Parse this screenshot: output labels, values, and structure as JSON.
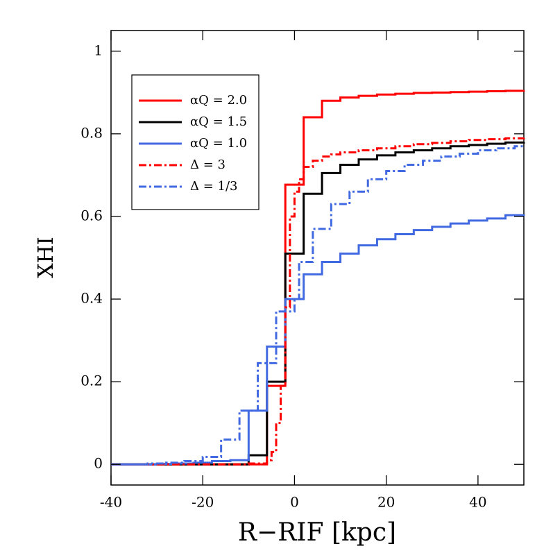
{
  "chart_data": {
    "type": "step",
    "xlabel": "R−RIF [kpc]",
    "ylabel": "XHI",
    "xlim": [
      -40,
      50
    ],
    "ylim": [
      -0.05,
      1.05
    ],
    "xticks": [
      -40,
      -20,
      0,
      20,
      40
    ],
    "yticks": [
      0,
      0.2,
      0.4,
      0.6,
      0.8,
      1
    ],
    "legend": "upper left",
    "series": [
      {
        "name": "αQ = 2.0",
        "color": "#ff0000",
        "dash": "solid",
        "x": [
          -40,
          -38,
          -34,
          -30,
          -26,
          -22,
          -18,
          -14,
          -10,
          -6,
          -2,
          2,
          6,
          10,
          14,
          18,
          22,
          26,
          30,
          34,
          38,
          42,
          46,
          50
        ],
        "values": [
          0,
          0,
          0,
          0,
          0,
          0,
          0,
          0,
          0,
          0.19,
          0.677,
          0.84,
          0.88,
          0.888,
          0.892,
          0.895,
          0.897,
          0.899,
          0.9,
          0.901,
          0.902,
          0.903,
          0.904,
          0.905
        ]
      },
      {
        "name": "αQ = 1.5",
        "color": "#000000",
        "dash": "solid",
        "x": [
          -40,
          -38,
          -34,
          -30,
          -26,
          -22,
          -18,
          -14,
          -10,
          -6,
          -2,
          2,
          6,
          10,
          14,
          18,
          22,
          26,
          30,
          34,
          38,
          42,
          46,
          50
        ],
        "values": [
          0,
          0,
          0,
          0,
          0,
          0,
          0,
          0,
          0.022,
          0.2,
          0.51,
          0.655,
          0.705,
          0.725,
          0.738,
          0.748,
          0.755,
          0.76,
          0.765,
          0.77,
          0.773,
          0.776,
          0.779,
          0.78
        ]
      },
      {
        "name": "αQ = 1.0",
        "color": "#4169e1",
        "dash": "solid",
        "x": [
          -40,
          -38,
          -34,
          -30,
          -26,
          -22,
          -18,
          -14,
          -10,
          -6,
          -2,
          2,
          6,
          10,
          14,
          18,
          22,
          26,
          30,
          34,
          38,
          42,
          46,
          50
        ],
        "values": [
          0,
          0,
          0,
          0.001,
          0.002,
          0.004,
          0.008,
          0.01,
          0.13,
          0.285,
          0.4,
          0.46,
          0.49,
          0.51,
          0.53,
          0.545,
          0.557,
          0.567,
          0.575,
          0.583,
          0.59,
          0.595,
          0.603,
          0.605
        ]
      },
      {
        "name": "Δ = 3",
        "color": "#ff0000",
        "dash": "dashdot",
        "x": [
          -40,
          -10,
          -6,
          -5,
          -4,
          -3,
          -2,
          -1,
          0,
          1,
          2,
          4,
          6,
          8,
          10,
          14,
          18,
          22,
          26,
          30,
          34,
          38,
          42,
          46,
          50
        ],
        "values": [
          0,
          0.002,
          0.01,
          0.03,
          0.1,
          0.19,
          0.38,
          0.6,
          0.66,
          0.69,
          0.72,
          0.735,
          0.745,
          0.75,
          0.755,
          0.76,
          0.765,
          0.77,
          0.775,
          0.778,
          0.782,
          0.785,
          0.787,
          0.789,
          0.79
        ]
      },
      {
        "name": "Δ = 1/3",
        "color": "#4169e1",
        "dash": "dashdot",
        "x": [
          -40,
          -32,
          -28,
          -24,
          -20,
          -16,
          -12,
          -8,
          -4,
          0,
          1,
          4,
          8,
          12,
          16,
          20,
          24,
          28,
          32,
          36,
          40,
          44,
          48,
          50
        ],
        "values": [
          0,
          0.002,
          0.004,
          0.008,
          0.018,
          0.06,
          0.13,
          0.245,
          0.37,
          0.4,
          0.49,
          0.57,
          0.63,
          0.66,
          0.69,
          0.71,
          0.725,
          0.735,
          0.745,
          0.752,
          0.76,
          0.765,
          0.77,
          0.772
        ]
      }
    ]
  }
}
